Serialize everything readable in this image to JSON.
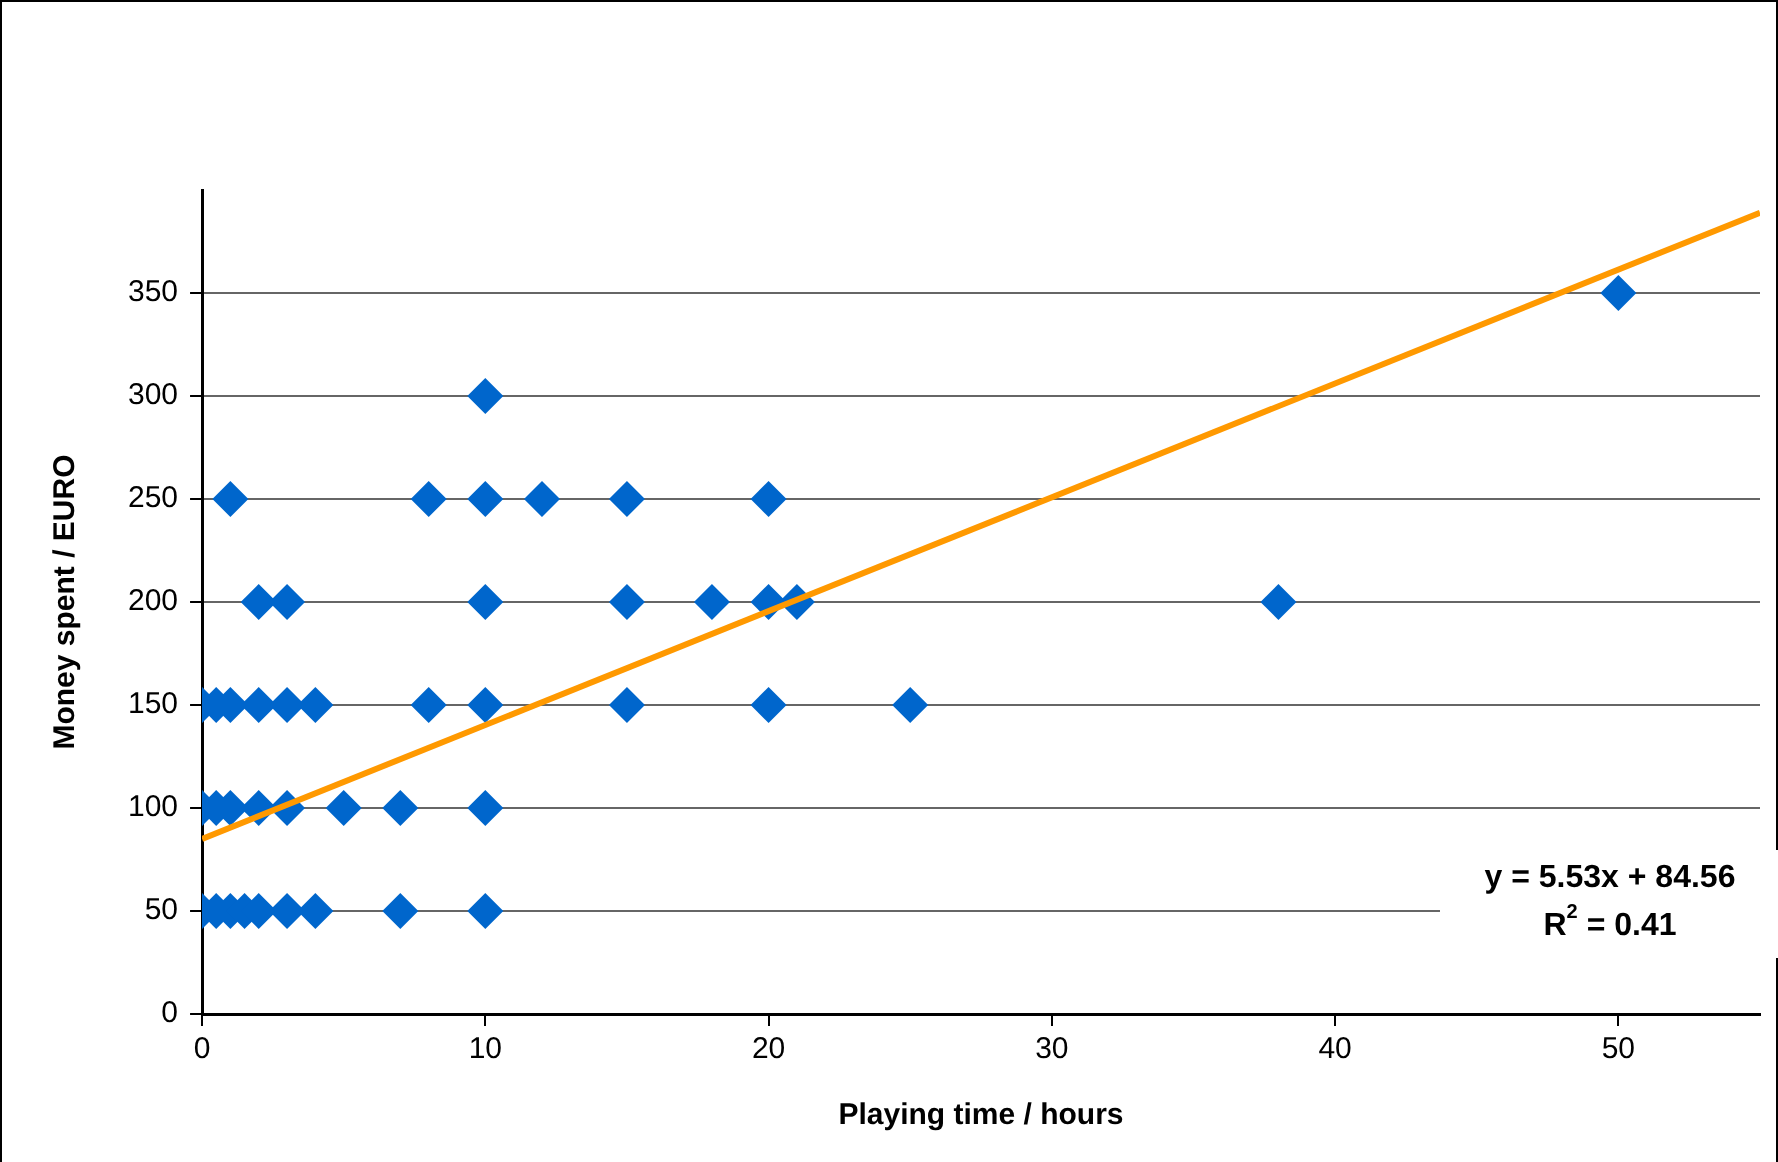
{
  "chart_data": {
    "type": "scatter",
    "xlabel": "Playing time / hours",
    "ylabel": "Money spent / EURO",
    "xlim": [
      0,
      55
    ],
    "ylim": [
      0,
      400
    ],
    "xticks": [
      0,
      10,
      20,
      30,
      40,
      50
    ],
    "yticks": [
      0,
      50,
      100,
      150,
      200,
      250,
      300,
      350
    ],
    "grid": "y",
    "marker": "diamond",
    "legend": false,
    "series": [
      {
        "color": "#0066cc",
        "x": [
          10,
          1,
          8,
          10,
          12,
          15,
          20,
          2,
          3,
          10,
          15,
          18,
          20,
          21,
          38,
          0,
          0.5,
          1,
          2,
          3,
          4,
          8,
          10,
          15,
          20,
          25,
          0,
          0.5,
          1,
          2,
          3,
          5,
          7,
          10,
          0,
          0.5,
          1,
          1.5,
          2,
          3,
          4,
          7,
          10,
          50
        ],
        "values": [
          300,
          250,
          250,
          250,
          250,
          250,
          250,
          200,
          200,
          200,
          200,
          200,
          200,
          200,
          200,
          150,
          150,
          150,
          150,
          150,
          150,
          150,
          150,
          150,
          150,
          150,
          100,
          100,
          100,
          100,
          100,
          100,
          100,
          100,
          50,
          50,
          50,
          50,
          50,
          50,
          50,
          50,
          50,
          350
        ]
      },
      {
        "type": "line",
        "color": "#ff9900",
        "marker": "none",
        "line_style": "solid",
        "x": [
          0,
          55
        ],
        "values": [
          85,
          389
        ]
      }
    ],
    "annotations": [
      "y = 5.53x + 84.56",
      "R$^{2}$ = 0.41"
    ]
  }
}
